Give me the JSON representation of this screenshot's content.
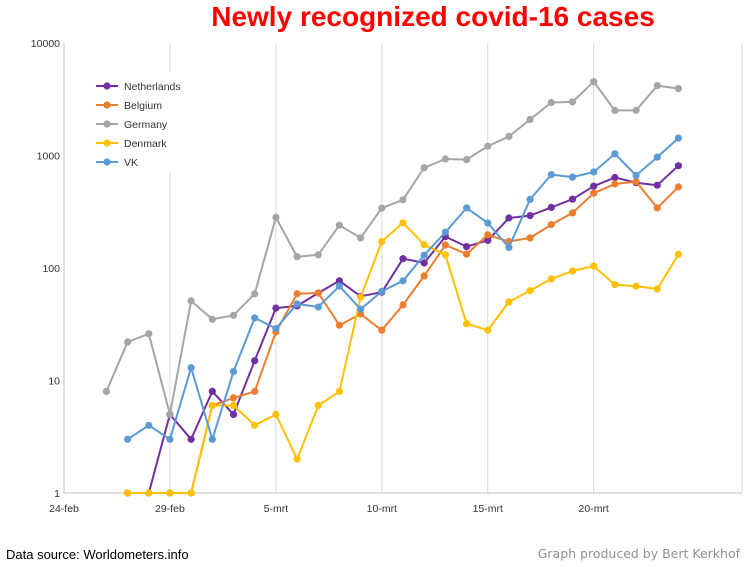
{
  "chart_data": {
    "type": "line",
    "title": "Newly recognized covid-16 cases",
    "subtitle": "",
    "xlabel": "",
    "ylabel": "",
    "y_scale": "log",
    "ylim": [
      1,
      10000
    ],
    "y_ticks": [
      {
        "value": 1,
        "label": "1"
      },
      {
        "value": 10,
        "label": "10"
      },
      {
        "value": 100,
        "label": "100"
      },
      {
        "value": 1000,
        "label": "1000"
      },
      {
        "value": 10000,
        "label": "10000"
      }
    ],
    "xlim": [
      "2020-02-24",
      "2020-03-27"
    ],
    "x_ticks": [
      {
        "value": "2020-02-24",
        "label": "24-feb"
      },
      {
        "value": "2020-02-29",
        "label": "29-feb"
      },
      {
        "value": "2020-03-05",
        "label": "5-mrt"
      },
      {
        "value": "2020-03-10",
        "label": "10-mrt"
      },
      {
        "value": "2020-03-15",
        "label": "15-mrt"
      },
      {
        "value": "2020-03-20",
        "label": "20-mrt"
      }
    ],
    "grid": {
      "vertical": true,
      "horizontal": false
    },
    "legend_position": "top-left",
    "series": [
      {
        "name": "Netherlands",
        "color": "#7030a0",
        "points": [
          [
            "2020-02-27",
            1
          ],
          [
            "2020-02-28",
            1
          ],
          [
            "2020-02-29",
            5
          ],
          [
            "2020-03-01",
            3
          ],
          [
            "2020-03-02",
            8
          ],
          [
            "2020-03-03",
            5
          ],
          [
            "2020-03-04",
            15
          ],
          [
            "2020-03-05",
            44
          ],
          [
            "2020-03-06",
            46
          ],
          [
            "2020-03-07",
            60
          ],
          [
            "2020-03-08",
            77
          ],
          [
            "2020-03-09",
            56
          ],
          [
            "2020-03-10",
            61
          ],
          [
            "2020-03-11",
            121
          ],
          [
            "2020-03-12",
            111
          ],
          [
            "2020-03-13",
            190
          ],
          [
            "2020-03-14",
            155
          ],
          [
            "2020-03-15",
            176
          ],
          [
            "2020-03-16",
            278
          ],
          [
            "2020-03-17",
            292
          ],
          [
            "2020-03-18",
            346
          ],
          [
            "2020-03-19",
            409
          ],
          [
            "2020-03-20",
            534
          ],
          [
            "2020-03-21",
            637
          ],
          [
            "2020-03-22",
            573
          ],
          [
            "2020-03-23",
            545
          ],
          [
            "2020-03-24",
            811
          ]
        ]
      },
      {
        "name": "Belgium",
        "color": "#ed7d31",
        "points": [
          [
            "2020-02-27",
            1
          ],
          [
            "2020-02-28",
            1
          ],
          [
            "2020-02-29",
            1
          ],
          [
            "2020-03-01",
            1
          ],
          [
            "2020-03-02",
            6
          ],
          [
            "2020-03-03",
            7
          ],
          [
            "2020-03-04",
            8
          ],
          [
            "2020-03-05",
            27
          ],
          [
            "2020-03-06",
            59
          ],
          [
            "2020-03-07",
            60
          ],
          [
            "2020-03-08",
            31
          ],
          [
            "2020-03-09",
            39
          ],
          [
            "2020-03-10",
            28
          ],
          [
            "2020-03-11",
            47
          ],
          [
            "2020-03-12",
            85
          ],
          [
            "2020-03-13",
            160
          ],
          [
            "2020-03-14",
            133
          ],
          [
            "2020-03-15",
            197
          ],
          [
            "2020-03-16",
            172
          ],
          [
            "2020-03-17",
            185
          ],
          [
            "2020-03-18",
            243
          ],
          [
            "2020-03-19",
            309
          ],
          [
            "2020-03-20",
            462
          ],
          [
            "2020-03-21",
            558
          ],
          [
            "2020-03-22",
            586
          ],
          [
            "2020-03-23",
            342
          ],
          [
            "2020-03-24",
            526
          ]
        ]
      },
      {
        "name": "Germany",
        "color": "#a5a5a5",
        "points": [
          [
            "2020-02-26",
            8
          ],
          [
            "2020-02-27",
            22
          ],
          [
            "2020-02-28",
            26
          ],
          [
            "2020-02-29",
            5
          ],
          [
            "2020-03-01",
            51
          ],
          [
            "2020-03-02",
            35
          ],
          [
            "2020-03-03",
            38
          ],
          [
            "2020-03-04",
            59
          ],
          [
            "2020-03-05",
            282
          ],
          [
            "2020-03-06",
            126
          ],
          [
            "2020-03-07",
            131
          ],
          [
            "2020-03-08",
            240
          ],
          [
            "2020-03-09",
            185
          ],
          [
            "2020-03-10",
            341
          ],
          [
            "2020-03-11",
            404
          ],
          [
            "2020-03-12",
            779
          ],
          [
            "2020-03-13",
            930
          ],
          [
            "2020-03-14",
            920
          ],
          [
            "2020-03-15",
            1210
          ],
          [
            "2020-03-16",
            1477
          ],
          [
            "2020-03-17",
            2089
          ],
          [
            "2020-03-18",
            2960
          ],
          [
            "2020-03-19",
            2993
          ],
          [
            "2020-03-20",
            4528
          ],
          [
            "2020-03-21",
            2514
          ],
          [
            "2020-03-22",
            2524
          ],
          [
            "2020-03-23",
            4183
          ],
          [
            "2020-03-24",
            3930
          ]
        ]
      },
      {
        "name": "Denmark",
        "color": "#ffc000",
        "points": [
          [
            "2020-02-27",
            1
          ],
          [
            "2020-02-28",
            1
          ],
          [
            "2020-02-29",
            1
          ],
          [
            "2020-03-01",
            1
          ],
          [
            "2020-03-02",
            6
          ],
          [
            "2020-03-03",
            6
          ],
          [
            "2020-03-04",
            4
          ],
          [
            "2020-03-05",
            5
          ],
          [
            "2020-03-06",
            2
          ],
          [
            "2020-03-07",
            6
          ],
          [
            "2020-03-08",
            8
          ],
          [
            "2020-03-09",
            55
          ],
          [
            "2020-03-10",
            172
          ],
          [
            "2020-03-11",
            252
          ],
          [
            "2020-03-12",
            161
          ],
          [
            "2020-03-13",
            131
          ],
          [
            "2020-03-14",
            32
          ],
          [
            "2020-03-15",
            28
          ],
          [
            "2020-03-16",
            50
          ],
          [
            "2020-03-17",
            63
          ],
          [
            "2020-03-18",
            80
          ],
          [
            "2020-03-19",
            94
          ],
          [
            "2020-03-20",
            104
          ],
          [
            "2020-03-21",
            71
          ],
          [
            "2020-03-22",
            69
          ],
          [
            "2020-03-23",
            65
          ],
          [
            "2020-03-24",
            132
          ]
        ]
      },
      {
        "name": "VK",
        "color": "#5b9bd5",
        "points": [
          [
            "2020-02-27",
            3
          ],
          [
            "2020-02-28",
            4
          ],
          [
            "2020-02-29",
            3
          ],
          [
            "2020-03-01",
            13
          ],
          [
            "2020-03-02",
            3
          ],
          [
            "2020-03-03",
            12
          ],
          [
            "2020-03-04",
            36
          ],
          [
            "2020-03-05",
            29
          ],
          [
            "2020-03-06",
            48
          ],
          [
            "2020-03-07",
            45
          ],
          [
            "2020-03-08",
            69
          ],
          [
            "2020-03-09",
            43
          ],
          [
            "2020-03-10",
            62
          ],
          [
            "2020-03-11",
            77
          ],
          [
            "2020-03-12",
            130
          ],
          [
            "2020-03-13",
            208
          ],
          [
            "2020-03-14",
            342
          ],
          [
            "2020-03-15",
            251
          ],
          [
            "2020-03-16",
            152
          ],
          [
            "2020-03-17",
            407
          ],
          [
            "2020-03-18",
            676
          ],
          [
            "2020-03-19",
            643
          ],
          [
            "2020-03-20",
            714
          ],
          [
            "2020-03-21",
            1035
          ],
          [
            "2020-03-22",
            665
          ],
          [
            "2020-03-23",
            967
          ],
          [
            "2020-03-24",
            1427
          ]
        ]
      }
    ]
  },
  "footer": {
    "source": "Data source: Worldometers.info",
    "credit": "Graph produced by Bert Kerkhof"
  }
}
